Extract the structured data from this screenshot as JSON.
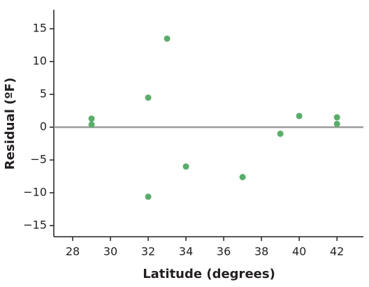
{
  "chart_data": {
    "type": "scatter",
    "xlabel": "Latitude (degrees)",
    "ylabel": "Residual (ºF)",
    "x": [
      29,
      29,
      32,
      32,
      33,
      34,
      37,
      39,
      40,
      42,
      42
    ],
    "values": [
      1.3,
      0.4,
      4.5,
      -10.6,
      13.5,
      -6.0,
      -7.6,
      -1.0,
      1.7,
      1.5,
      0.5
    ],
    "color": "#5aac6a",
    "xlim": [
      27,
      43.4
    ],
    "ylim": [
      -16.7,
      17.9
    ],
    "xticks": [
      28,
      30,
      32,
      34,
      36,
      38,
      40,
      42
    ],
    "yticks": [
      {
        "value": -15,
        "label": "−15"
      },
      {
        "value": -10,
        "label": "−10"
      },
      {
        "value": -5,
        "label": "−5"
      },
      0,
      5,
      10,
      15
    ],
    "reference_line": 0,
    "reference_color": "#9a9a9a"
  }
}
